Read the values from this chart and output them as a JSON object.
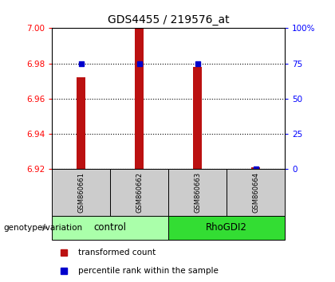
{
  "title": "GDS4455 / 219576_at",
  "samples": [
    "GSM860661",
    "GSM860662",
    "GSM860663",
    "GSM860664"
  ],
  "transformed_counts": [
    6.972,
    7.0,
    6.978,
    6.921
  ],
  "percentile_ranks": [
    75,
    75,
    75,
    0
  ],
  "ylim_left": [
    6.92,
    7.0
  ],
  "ylim_right": [
    0,
    100
  ],
  "yticks_left": [
    6.92,
    6.94,
    6.96,
    6.98,
    7.0
  ],
  "yticks_right": [
    0,
    25,
    50,
    75,
    100
  ],
  "ytick_labels_right": [
    "0",
    "25",
    "50",
    "75",
    "100%"
  ],
  "groups": [
    {
      "label": "control",
      "samples": [
        0,
        1
      ],
      "color": "#aaffaa"
    },
    {
      "label": "RhoGDI2",
      "samples": [
        2,
        3
      ],
      "color": "#33dd33"
    }
  ],
  "bar_color": "#BB1111",
  "dot_color": "#0000CC",
  "sample_box_color": "#CCCCCC",
  "bar_width": 0.15,
  "baseline": 6.92,
  "n_samples": 4
}
